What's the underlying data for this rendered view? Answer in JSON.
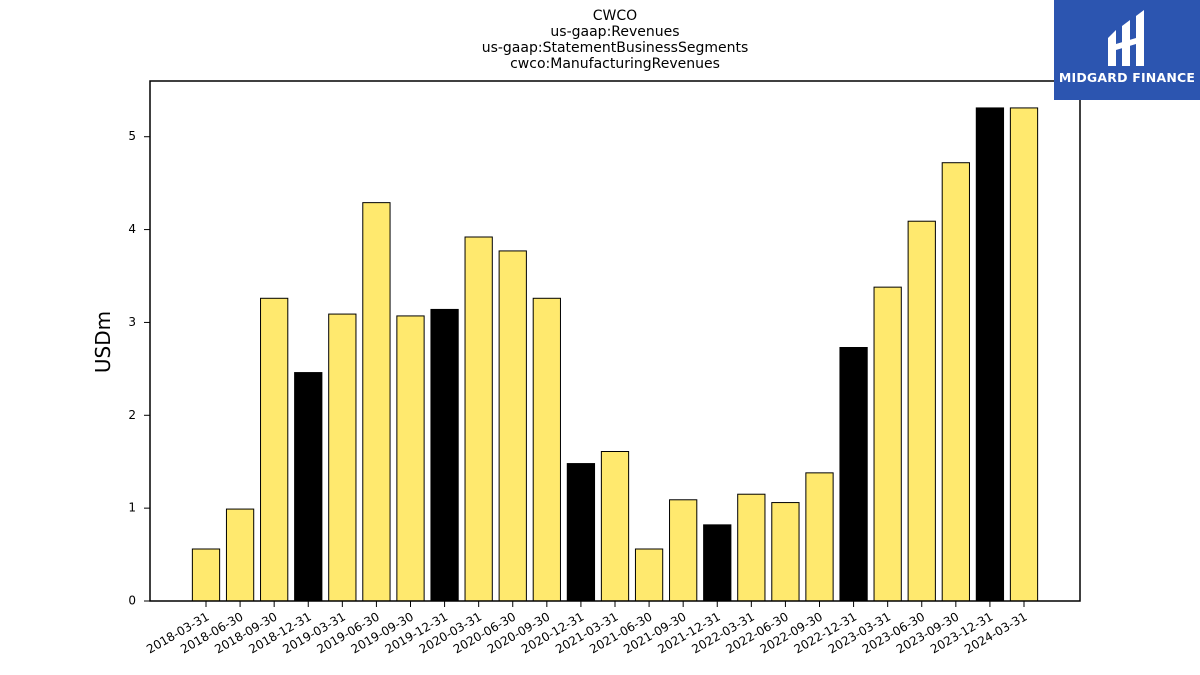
{
  "chart_data": {
    "type": "bar",
    "title_lines": [
      "CWCO",
      "us-gaap:Revenues",
      "us-gaap:StatementBusinessSegments",
      "cwco:ManufacturingRevenues"
    ],
    "ylabel": "USDm",
    "xlabel": "",
    "ylim": [
      0,
      5.6
    ],
    "yticks": [
      0,
      1,
      2,
      3,
      4,
      5
    ],
    "categories": [
      "2018-03-31",
      "2018-06-30",
      "2018-09-30",
      "2018-12-31",
      "2019-03-31",
      "2019-06-30",
      "2019-09-30",
      "2019-12-31",
      "2020-03-31",
      "2020-06-30",
      "2020-09-30",
      "2020-12-31",
      "2021-03-31",
      "2021-06-30",
      "2021-09-30",
      "2021-12-31",
      "2022-03-31",
      "2022-06-30",
      "2022-09-30",
      "2022-12-31",
      "2023-03-31",
      "2023-06-30",
      "2023-09-30",
      "2023-12-31",
      "2024-03-31"
    ],
    "values": [
      0.56,
      0.99,
      3.26,
      2.46,
      3.09,
      4.29,
      3.07,
      3.14,
      3.92,
      3.77,
      3.26,
      1.48,
      1.61,
      0.56,
      1.09,
      0.82,
      1.15,
      1.06,
      1.38,
      2.73,
      3.38,
      4.09,
      4.72,
      5.31,
      5.31
    ],
    "bar_colors": [
      "#ffe96e",
      "#ffe96e",
      "#ffe96e",
      "#000000",
      "#ffe96e",
      "#ffe96e",
      "#ffe96e",
      "#000000",
      "#ffe96e",
      "#ffe96e",
      "#ffe96e",
      "#000000",
      "#ffe96e",
      "#ffe96e",
      "#ffe96e",
      "#000000",
      "#ffe96e",
      "#ffe96e",
      "#ffe96e",
      "#000000",
      "#ffe96e",
      "#ffe96e",
      "#ffe96e",
      "#000000",
      "#ffe96e"
    ],
    "grid": false,
    "legend": "none"
  },
  "logo": {
    "text": "MIDGARD FINANCE",
    "background": "#2c55b0"
  }
}
